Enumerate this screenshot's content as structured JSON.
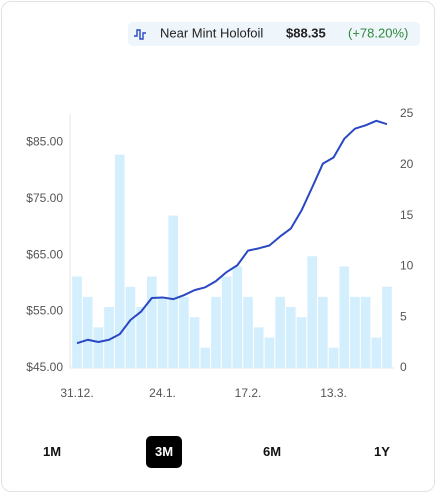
{
  "chart_data": {
    "type": "combo",
    "legend_price": "$88.35",
    "legend_change": "(+78.20%)",
    "categories": [
      "31.12.",
      null,
      null,
      null,
      null,
      null,
      null,
      null,
      "24.1.",
      null,
      null,
      null,
      null,
      null,
      null,
      null,
      "17.2.",
      null,
      null,
      null,
      null,
      null,
      null,
      null,
      "13.3.",
      null,
      null,
      null,
      null,
      null
    ],
    "series": [
      {
        "name": "Near Mint Holofoil",
        "kind": "line",
        "color": "#2a47c4",
        "values": [
          49.4,
          50.0,
          49.6,
          50.0,
          51.0,
          53.5,
          55.0,
          57.4,
          57.5,
          57.2,
          57.9,
          58.8,
          59.3,
          60.4,
          62.0,
          63.2,
          65.8,
          66.2,
          66.7,
          68.3,
          69.7,
          72.9,
          77.0,
          81.2,
          82.3,
          85.6,
          87.4,
          88.0,
          88.8,
          88.2
        ]
      },
      {
        "kind": "bar",
        "axis": "y2",
        "color": "#d3eefc",
        "values": [
          9,
          7,
          4,
          6,
          21,
          8,
          6,
          9,
          7,
          15,
          7,
          5,
          2,
          7,
          9,
          10,
          7,
          4,
          3,
          7,
          6,
          5,
          11,
          7,
          2,
          10,
          7,
          7,
          3,
          8
        ]
      }
    ],
    "ylim": [
      45,
      90
    ],
    "yticks": [
      {
        "value": 45,
        "label": "$45.00"
      },
      {
        "value": 55,
        "label": "$55.00"
      },
      {
        "value": 65,
        "label": "$65.00"
      },
      {
        "value": 75,
        "label": "$75.00"
      },
      {
        "value": 85,
        "label": "$85.00"
      }
    ],
    "y2lim": [
      0,
      25
    ],
    "y2ticks": [
      0,
      5,
      10,
      15,
      20,
      25
    ],
    "ranges": [
      "1M",
      "3M",
      "6M",
      "1Y"
    ],
    "selected_range": 1
  }
}
